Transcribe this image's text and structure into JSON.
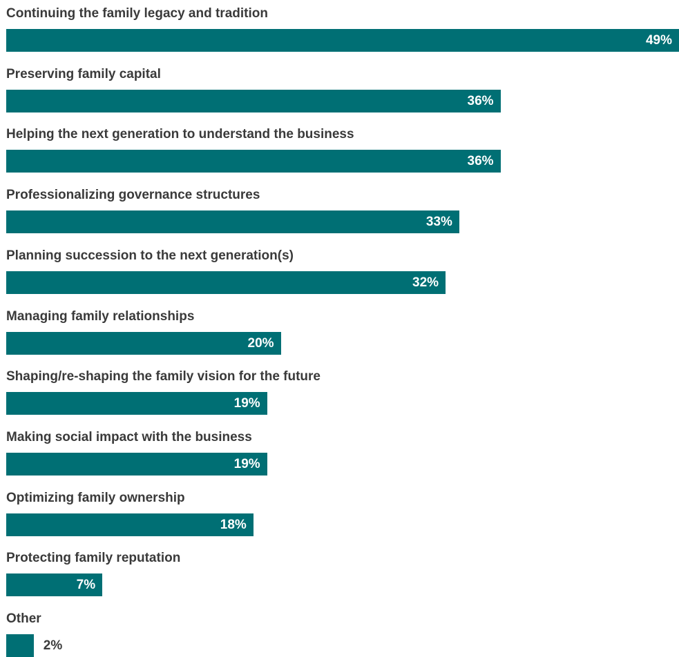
{
  "chart_data": {
    "type": "bar",
    "orientation": "horizontal",
    "categories": [
      "Continuing the family legacy and tradition",
      "Preserving family capital",
      "Helping the next generation to understand the business",
      "Professionalizing governance structures",
      "Planning succession to the next generation(s)",
      "Managing family relationships",
      "Shaping/re-shaping the family vision for the future",
      "Making social impact with the business",
      "Optimizing family ownership",
      "Protecting family reputation",
      "Other"
    ],
    "values": [
      49,
      36,
      36,
      33,
      32,
      20,
      19,
      19,
      18,
      7,
      2
    ],
    "value_labels": [
      "49%",
      "36%",
      "36%",
      "33%",
      "32%",
      "20%",
      "19%",
      "19%",
      "18%",
      "7%",
      "2%"
    ],
    "xlim": [
      0,
      49
    ],
    "bar_color": "#006f74",
    "grid": false
  }
}
